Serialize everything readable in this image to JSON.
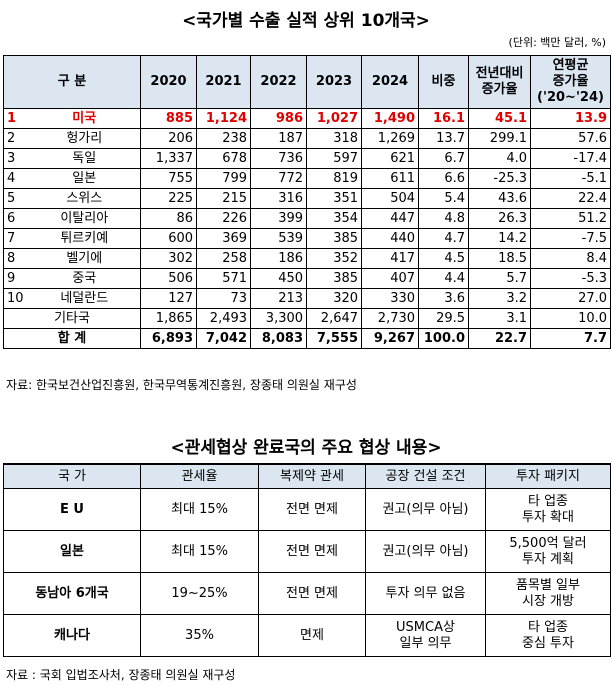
{
  "export_table": {
    "title": "<국가별 수출 실적 상위 10개국>",
    "unit": "(단위: 백만 달러, %)",
    "header": [
      [
        "구 분"
      ],
      [
        "2020"
      ],
      [
        "2021"
      ],
      [
        "2022"
      ],
      [
        "2023"
      ],
      [
        "2024"
      ],
      [
        "비중"
      ],
      [
        "전년대비",
        "증가율"
      ],
      [
        "연평균",
        "증가율",
        "('20~'24)"
      ]
    ],
    "rows": [
      {
        "rank": "1",
        "name": "미국",
        "values": [
          "885",
          "1,124",
          "986",
          "1,027",
          "1,490",
          "16.1",
          "45.1",
          "13.9"
        ]
      },
      {
        "rank": "2",
        "name": "헝가리",
        "values": [
          "206",
          "238",
          "187",
          "318",
          "1,269",
          "13.7",
          "299.1",
          "57.6"
        ]
      },
      {
        "rank": "3",
        "name": "독일",
        "values": [
          "1,337",
          "678",
          "736",
          "597",
          "621",
          "6.7",
          "4.0",
          "-17.4"
        ]
      },
      {
        "rank": "4",
        "name": "일본",
        "values": [
          "755",
          "799",
          "772",
          "819",
          "611",
          "6.6",
          "-25.3",
          "-5.1"
        ]
      },
      {
        "rank": "5",
        "name": "스위스",
        "values": [
          "225",
          "215",
          "316",
          "351",
          "504",
          "5.4",
          "43.6",
          "22.4"
        ]
      },
      {
        "rank": "6",
        "name": "이탈리아",
        "values": [
          "86",
          "226",
          "399",
          "354",
          "447",
          "4.8",
          "26.3",
          "51.2"
        ]
      },
      {
        "rank": "7",
        "name": "튀르키예",
        "values": [
          "600",
          "369",
          "539",
          "385",
          "440",
          "4.7",
          "14.2",
          "-7.5"
        ]
      },
      {
        "rank": "8",
        "name": "벨기에",
        "values": [
          "302",
          "258",
          "186",
          "352",
          "417",
          "4.5",
          "18.5",
          "8.4"
        ]
      },
      {
        "rank": "9",
        "name": "중국",
        "values": [
          "506",
          "571",
          "450",
          "385",
          "407",
          "4.4",
          "5.7",
          "-5.3"
        ]
      },
      {
        "rank": "10",
        "name": "네덜란드",
        "values": [
          "127",
          "73",
          "213",
          "320",
          "330",
          "3.6",
          "3.2",
          "27.0"
        ]
      },
      {
        "name": "기타국",
        "values": [
          "1,865",
          "2,493",
          "3,300",
          "2,647",
          "2,730",
          "29.5",
          "3.1",
          "10.0"
        ]
      },
      {
        "name": "합 계",
        "values": [
          "6,893",
          "7,042",
          "8,083",
          "7,555",
          "9,267",
          "100.0",
          "22.7",
          "7.7"
        ]
      }
    ],
    "source": "자료: 한국보건산업진흥원, 한국무역통계진흥원, 장종태 의원실 재구성"
  },
  "deal_table": {
    "title": "<관세협상 완료국의 주요 협상 내용>",
    "header": [
      "국 가",
      "관세율",
      "복제약 관세",
      "공장 건설 조건",
      "투자 패키지"
    ],
    "rows": [
      [
        [
          "E U"
        ],
        [
          "최대 15%"
        ],
        [
          "전면 면제"
        ],
        [
          "권고(의무 아님)"
        ],
        [
          "타 업종",
          "투자 확대"
        ]
      ],
      [
        [
          "일본"
        ],
        [
          "최대 15%"
        ],
        [
          "전면 면제"
        ],
        [
          "권고(의무 아님)"
        ],
        [
          "5,500억 달러",
          "투자 계획"
        ]
      ],
      [
        [
          "동남아 6개국"
        ],
        [
          "19~25%"
        ],
        [
          "전면 면제"
        ],
        [
          "투자 의무 없음"
        ],
        [
          "품목별 일부",
          "시장 개방"
        ]
      ],
      [
        [
          "캐나다"
        ],
        [
          "35%"
        ],
        [
          "면제"
        ],
        [
          "USMCA상",
          "일부 의무"
        ],
        [
          "타 업종",
          "중심 투자"
        ]
      ]
    ],
    "source": "자료 : 국회 입법조사처, 장종태 의원실 재구성"
  }
}
